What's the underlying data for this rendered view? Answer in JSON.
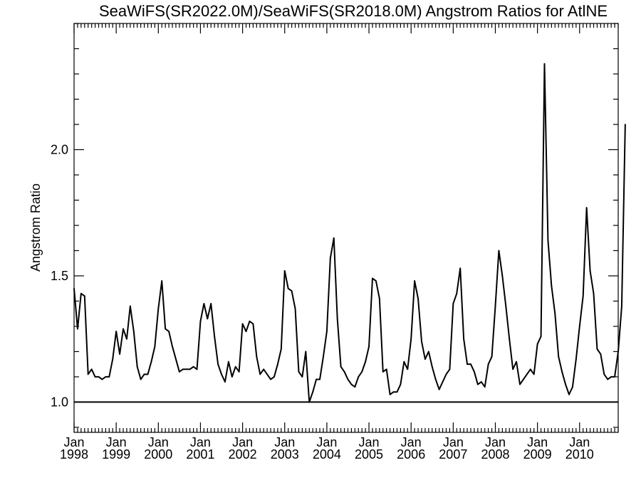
{
  "chart_data": {
    "type": "line",
    "title": "SeaWiFS(SR2022.0M)/SeaWiFS(SR2018.0M)  Angstrom Ratios for AtlNE",
    "xlabel": "",
    "ylabel": "Angstrom Ratio",
    "xlim": [
      "1998-01",
      "2010-12"
    ],
    "ylim": [
      0.88,
      2.5
    ],
    "y_ticks": [
      1.0,
      1.5,
      2.0
    ],
    "y_minor_step": 0.1,
    "x_ticks": [
      {
        "month": "Jan",
        "year": "1998",
        "date": "1998-01"
      },
      {
        "month": "Jan",
        "year": "1999",
        "date": "1999-01"
      },
      {
        "month": "Jan",
        "year": "2000",
        "date": "2000-01"
      },
      {
        "month": "Jan",
        "year": "2001",
        "date": "2001-01"
      },
      {
        "month": "Jan",
        "year": "2002",
        "date": "2002-01"
      },
      {
        "month": "Jan",
        "year": "2003",
        "date": "2003-01"
      },
      {
        "month": "Jan",
        "year": "2004",
        "date": "2004-01"
      },
      {
        "month": "Jan",
        "year": "2005",
        "date": "2005-01"
      },
      {
        "month": "Jan",
        "year": "2006",
        "date": "2006-01"
      },
      {
        "month": "Jan",
        "year": "2007",
        "date": "2007-01"
      },
      {
        "month": "Jan",
        "year": "2008",
        "date": "2008-01"
      },
      {
        "month": "Jan",
        "year": "2009",
        "date": "2009-01"
      },
      {
        "month": "Jan",
        "year": "2010",
        "date": "2010-01"
      }
    ],
    "reference_line": 1.0,
    "grid": false,
    "series_start": "1998-01",
    "series": [
      {
        "frequency": "monthly",
        "values": [
          1.45,
          1.29,
          1.43,
          1.42,
          1.11,
          1.13,
          1.1,
          1.1,
          1.09,
          1.1,
          1.1,
          1.17,
          1.28,
          1.19,
          1.29,
          1.25,
          1.38,
          1.28,
          1.14,
          1.09,
          1.11,
          1.11,
          1.16,
          1.22,
          1.37,
          1.48,
          1.29,
          1.28,
          1.22,
          1.17,
          1.12,
          1.13,
          1.13,
          1.13,
          1.14,
          1.13,
          1.32,
          1.39,
          1.33,
          1.39,
          1.26,
          1.15,
          1.11,
          1.08,
          1.16,
          1.1,
          1.14,
          1.12,
          1.31,
          1.28,
          1.32,
          1.31,
          1.18,
          1.11,
          1.13,
          1.11,
          1.09,
          1.1,
          1.15,
          1.21,
          1.52,
          1.45,
          1.44,
          1.37,
          1.12,
          1.1,
          1.2,
          1.0,
          1.04,
          1.09,
          1.09,
          1.18,
          1.28,
          1.57,
          1.65,
          1.33,
          1.14,
          1.12,
          1.09,
          1.07,
          1.06,
          1.1,
          1.12,
          1.16,
          1.22,
          1.49,
          1.48,
          1.41,
          1.12,
          1.13,
          1.03,
          1.04,
          1.04,
          1.07,
          1.16,
          1.13,
          1.25,
          1.48,
          1.41,
          1.24,
          1.17,
          1.2,
          1.14,
          1.09,
          1.05,
          1.08,
          1.11,
          1.13,
          1.39,
          1.43,
          1.53,
          1.25,
          1.15,
          1.15,
          1.12,
          1.07,
          1.08,
          1.06,
          1.15,
          1.18,
          1.38,
          1.6,
          1.5,
          1.38,
          1.25,
          1.13,
          1.16,
          1.07,
          1.09,
          1.11,
          1.13,
          1.11,
          1.23,
          1.26,
          2.34,
          1.64,
          1.46,
          1.35,
          1.18,
          1.12,
          1.07,
          1.03,
          1.06,
          1.17,
          1.3,
          1.42,
          1.77,
          1.52,
          1.43,
          1.21,
          1.19,
          1.11,
          1.09,
          1.1,
          1.1,
          1.2,
          1.38,
          2.1
        ]
      }
    ]
  }
}
